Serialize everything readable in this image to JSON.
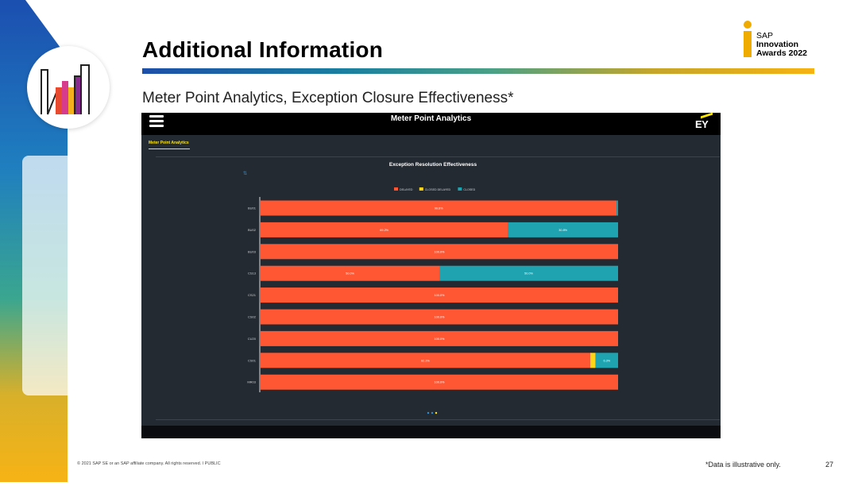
{
  "slide": {
    "title": "Additional Information",
    "subtitle": "Meter Point Analytics, Exception Closure Effectiveness*",
    "footer_copyright": "© 2021 SAP SE or an SAP affiliate company. All rights reserved.  ǀ  PUBLIC",
    "footer_note": "*Data is illustrative only.",
    "page_number": "27"
  },
  "award": {
    "line1": "SAP",
    "line2": "Innovation",
    "line3": "Awards 2022",
    "color": "#f0ab00"
  },
  "app": {
    "header_title": "Meter Point Analytics",
    "logo_text": "EY",
    "tab_label": "Meter Point Analytics",
    "menu_icon": "hamburger-menu-icon",
    "accent": "#ffe600"
  },
  "chart_data": {
    "type": "bar",
    "orientation": "horizontal",
    "stacked": true,
    "title": "Exception Resolution Effectiveness",
    "legend_position": "top-center",
    "categories": [
      "BU01",
      "BU02",
      "BU03",
      "CS13",
      "CS21",
      "CS02",
      "CU20",
      "CS01",
      "MR03"
    ],
    "series": [
      {
        "name": "DELAYED",
        "color": "#ff5733",
        "values": [
          99.6,
          69.2,
          100.0,
          50.0,
          100.0,
          100.0,
          100.0,
          92.2,
          100.0
        ],
        "labels": [
          "99.6%",
          "69.2%",
          "100.0%",
          "50.0%",
          "100.0%",
          "100.0%",
          "100.0%",
          "92.2%",
          "100.0%"
        ]
      },
      {
        "name": "CLOSED DELAYED",
        "color": "#ffd51a",
        "values": [
          0,
          0,
          0,
          0,
          0,
          0,
          0,
          1.5,
          0
        ],
        "labels": [
          "",
          "",
          "",
          "",
          "",
          "",
          "",
          "",
          ""
        ]
      },
      {
        "name": "CLOSED",
        "color": "#1fa3b0",
        "values": [
          0.4,
          30.8,
          0,
          50.0,
          0,
          0,
          0,
          6.3,
          0
        ],
        "labels": [
          "",
          "30.8%",
          "",
          "50.0%",
          "",
          "",
          "",
          "6.3%",
          ""
        ]
      }
    ],
    "xlim": [
      0,
      100
    ],
    "grid": false
  }
}
